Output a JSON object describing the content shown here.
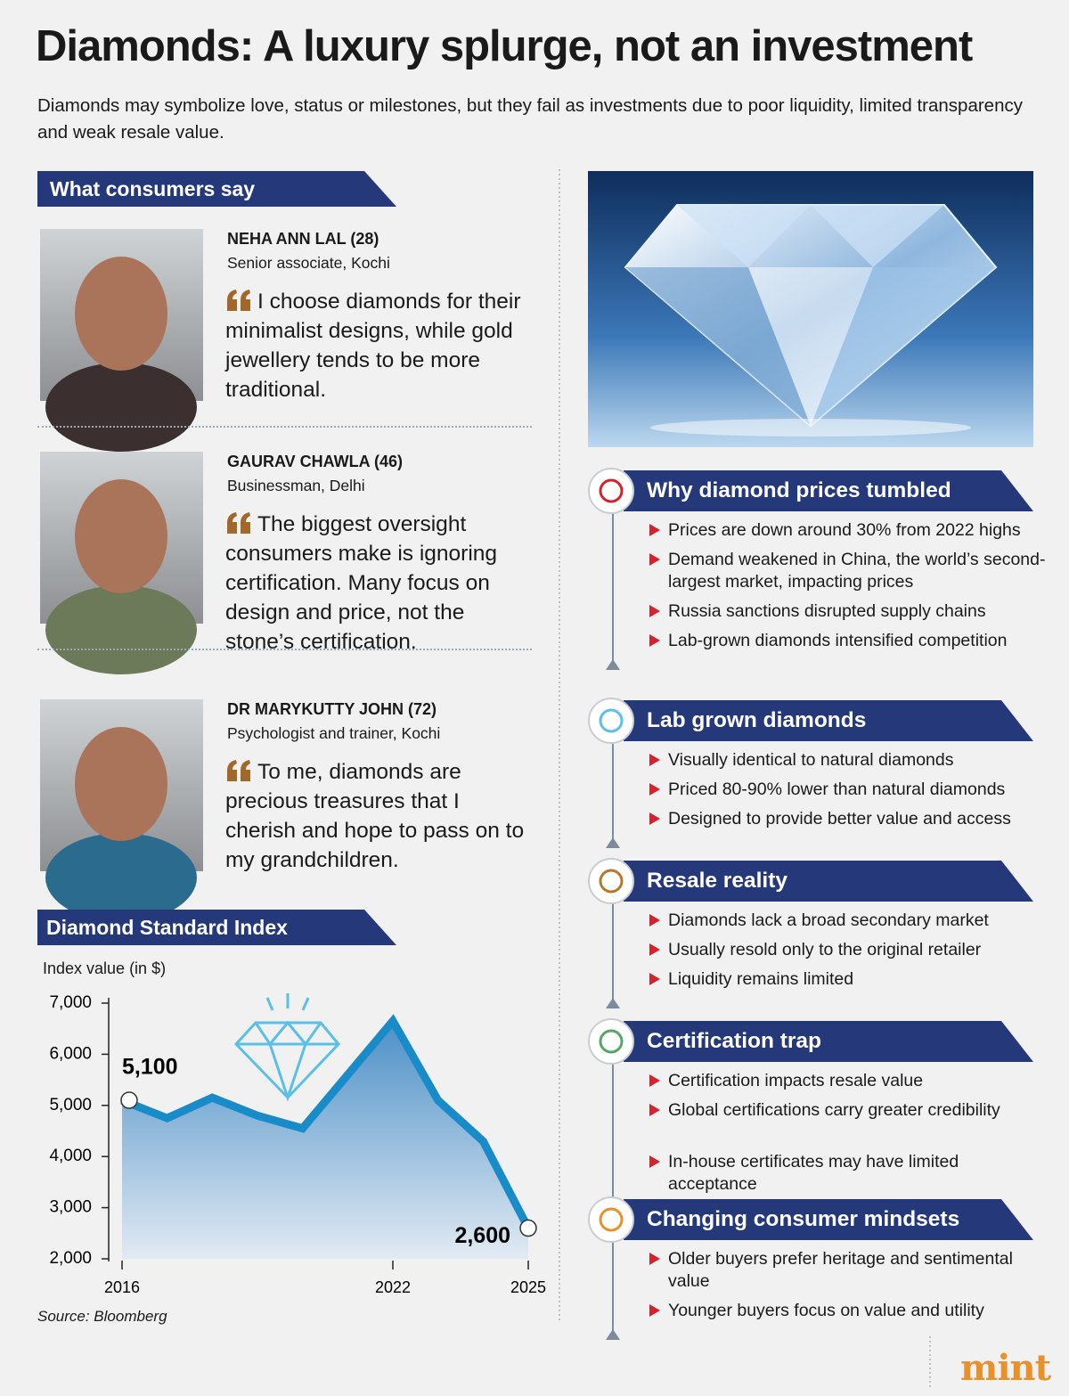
{
  "header": {
    "title": "Diamonds: A luxury splurge, not an investment",
    "subtitle": "Diamonds may symbolize love, status or milestones, but they fail as investments due to poor liquidity, limited transparency and weak resale value."
  },
  "consumers": {
    "heading": "What consumers say",
    "people": [
      {
        "name": "NEHA ANN LAL (28)",
        "role": "Senior associate, Kochi",
        "quote": "I choose diamonds for their minimalist designs, while gold jewellery tends to be more traditional."
      },
      {
        "name": "GAURAV CHAWLA (46)",
        "role": "Businessman, Delhi",
        "quote": "The biggest oversight consumers make is ignoring certification. Many focus on design and price, not the stone’s certification."
      },
      {
        "name": "DR MARYKUTTY JOHN (72)",
        "role": "Psychologist and trainer, Kochi",
        "quote": "To me, diamonds are precious treasures that I cherish and hope to pass on to my grandchildren."
      }
    ]
  },
  "chart_data": {
    "type": "line",
    "title": "Diamond Standard Index",
    "y_label": "Index value (in $)",
    "x": [
      2016,
      2017,
      2018,
      2019,
      2020,
      2022,
      2023,
      2024,
      2025
    ],
    "values": [
      5100,
      4750,
      5150,
      4800,
      4550,
      6650,
      5100,
      4300,
      2600
    ],
    "value_labels": [
      "5,100",
      null,
      null,
      null,
      null,
      null,
      null,
      null,
      "2,600"
    ],
    "color": "#1a8bc9",
    "xlim": [
      2016,
      2025
    ],
    "xticks": [
      2016,
      2022,
      2025
    ],
    "ylim": [
      2000,
      7000
    ],
    "yticks": [
      {
        "value": 2000,
        "label": "2,000"
      },
      {
        "value": 3000,
        "label": "3,000"
      },
      {
        "value": 4000,
        "label": "4,000"
      },
      {
        "value": 5000,
        "label": "5,000"
      },
      {
        "value": 6000,
        "label": "6,000"
      },
      {
        "value": 7000,
        "label": "7,000"
      }
    ],
    "source": "Source: Bloomberg"
  },
  "sections": [
    {
      "title": "Why diamond prices tumbled",
      "bullets": [
        "Prices are down around 30% from 2022 highs",
        "Demand weakened in China, the world’s second-largest market, impacting prices",
        "Russia sanctions disrupted supply chains",
        "Lab-grown diamonds intensified competition"
      ]
    },
    {
      "title": "Lab grown diamonds",
      "bullets": [
        "Visually identical to natural diamonds",
        "Priced 80-90% lower than natural diamonds",
        "Designed to provide better value and access"
      ]
    },
    {
      "title": "Resale reality",
      "bullets": [
        "Diamonds lack a broad secondary market",
        "Usually resold only to the original retailer",
        "Liquidity remains limited"
      ]
    },
    {
      "title": "Certification trap",
      "bullets": [
        "Certification impacts resale value",
        "Global certifications carry greater credibility",
        "In-house certificates may have limited acceptance"
      ]
    },
    {
      "title": "Changing consumer mindsets",
      "bullets": [
        "Older buyers prefer heritage and sentimental value",
        "Younger buyers focus on value and utility"
      ]
    }
  ],
  "brand": "mint"
}
